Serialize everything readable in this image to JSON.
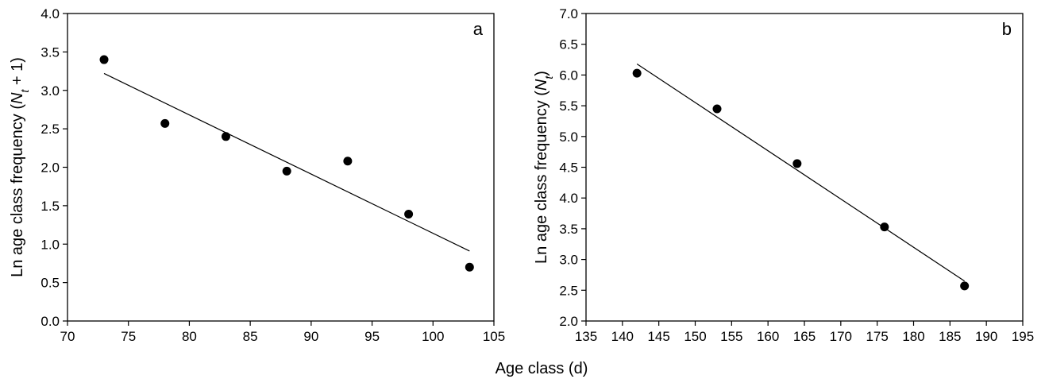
{
  "figure": {
    "shared_xlabel": "Age class (d)"
  },
  "chart_data": [
    {
      "type": "scatter",
      "panel_label": "a",
      "ylabel_prefix": "Ln age class frequency (",
      "ylabel_var": "N",
      "ylabel_sub": "t",
      "ylabel_suffix": " + 1)",
      "xlim": [
        70,
        105
      ],
      "ylim": [
        0.0,
        4.0
      ],
      "xticks": [
        70,
        75,
        80,
        85,
        90,
        95,
        100,
        105
      ],
      "yticks": [
        "0.0",
        "0.5",
        "1.0",
        "1.5",
        "2.0",
        "2.5",
        "3.0",
        "3.5",
        "4.0"
      ],
      "points": [
        {
          "x": 73,
          "y": 3.4
        },
        {
          "x": 78,
          "y": 2.57
        },
        {
          "x": 83,
          "y": 2.4
        },
        {
          "x": 88,
          "y": 1.95
        },
        {
          "x": 93,
          "y": 2.08
        },
        {
          "x": 98,
          "y": 1.39
        },
        {
          "x": 103,
          "y": 0.7
        }
      ],
      "fit_line": [
        {
          "x": 73,
          "y": 3.22
        },
        {
          "x": 103,
          "y": 0.91
        }
      ],
      "grid": false
    },
    {
      "type": "scatter",
      "panel_label": "b",
      "ylabel_prefix": "Ln age class frequency (",
      "ylabel_var": "N",
      "ylabel_sub": "t",
      "ylabel_suffix": ")",
      "xlim": [
        135,
        195
      ],
      "ylim": [
        2.0,
        7.0
      ],
      "xticks": [
        135,
        140,
        145,
        150,
        155,
        160,
        165,
        170,
        175,
        180,
        185,
        190,
        195
      ],
      "yticks": [
        "2.0",
        "2.5",
        "3.0",
        "3.5",
        "4.0",
        "4.5",
        "5.0",
        "5.5",
        "6.0",
        "6.5",
        "7.0"
      ],
      "points": [
        {
          "x": 142,
          "y": 6.03
        },
        {
          "x": 153,
          "y": 5.45
        },
        {
          "x": 164,
          "y": 4.56
        },
        {
          "x": 176,
          "y": 3.53
        },
        {
          "x": 187,
          "y": 2.57
        }
      ],
      "fit_line": [
        {
          "x": 142,
          "y": 6.18
        },
        {
          "x": 187,
          "y": 2.65
        }
      ],
      "grid": false
    }
  ]
}
